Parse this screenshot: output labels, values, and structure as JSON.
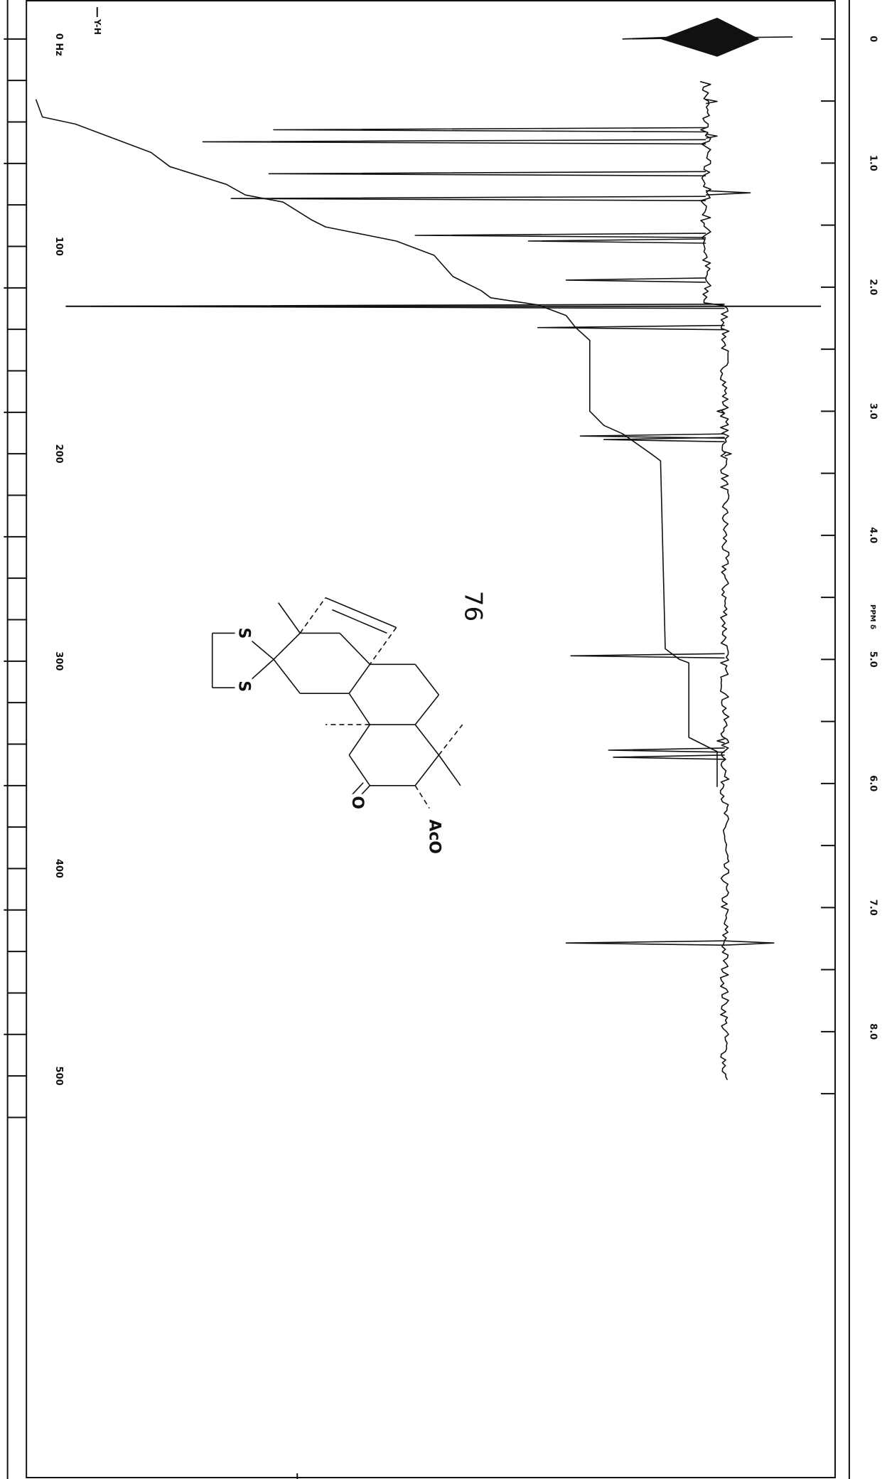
{
  "hz_axis": {
    "ticks": [
      "0 Hz",
      "100",
      "200",
      "300",
      "400",
      "500"
    ]
  },
  "ref_marker": "Y-H",
  "ppm_axis": {
    "ticks": [
      "0",
      "1.0",
      "2.0",
      "3.0",
      "4.0",
      "5.0",
      "6.0",
      "7.0",
      "8.0"
    ],
    "label": "PPM δ"
  },
  "compound": {
    "number": "76",
    "atoms": [
      "S",
      "S",
      "O",
      "AcO"
    ]
  }
}
